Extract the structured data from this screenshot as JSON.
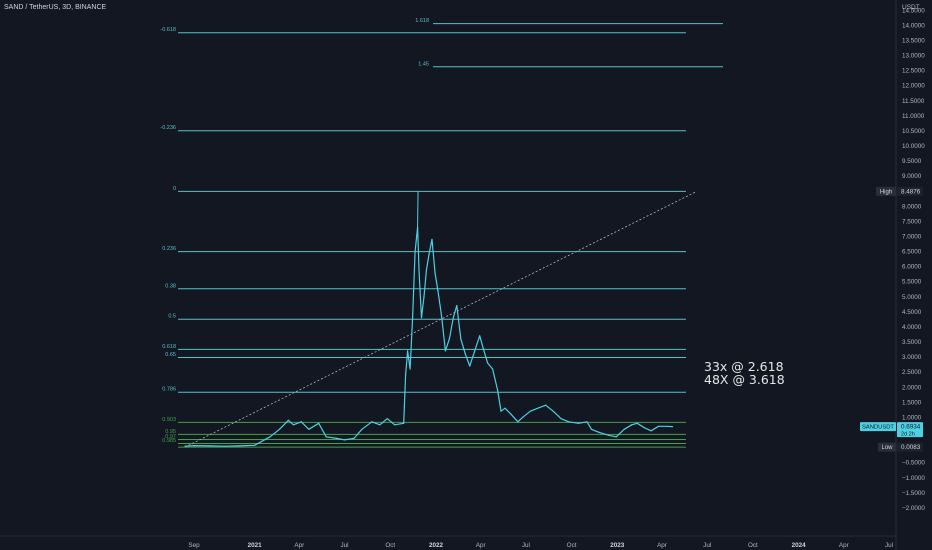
{
  "header": {
    "symbol": "SAND / TetherUS, 3D, BINANCE",
    "currency": "USDT"
  },
  "annotations": {
    "line1": "33x @ 2.618",
    "line2": "48X @ 3.618"
  },
  "colors": {
    "background": "#131722",
    "price": "#4dd0e1",
    "fib": "#56c1c9",
    "fib_green": "#43a047",
    "axis_text": "#b2b5be",
    "grid": "#1c2030"
  },
  "chart_data": {
    "type": "line",
    "title": "",
    "xlabel": "",
    "ylabel": "",
    "ylim": [
      -2.5,
      15
    ],
    "grid": false,
    "y_ticks": [
      {
        "value": 14.5,
        "label": "14.5000"
      },
      {
        "value": 14.0,
        "label": "14.0000"
      },
      {
        "value": 13.5,
        "label": "13.5000"
      },
      {
        "value": 13.0,
        "label": "13.0000"
      },
      {
        "value": 12.5,
        "label": "12.5000"
      },
      {
        "value": 12.0,
        "label": "12.0000"
      },
      {
        "value": 11.5,
        "label": "11.5000"
      },
      {
        "value": 11.0,
        "label": "11.0000"
      },
      {
        "value": 10.5,
        "label": "10.5000"
      },
      {
        "value": 10.0,
        "label": "10.0000"
      },
      {
        "value": 9.5,
        "label": "9.5000"
      },
      {
        "value": 9.0,
        "label": "9.0000"
      },
      {
        "value": 8.0,
        "label": "8.0000"
      },
      {
        "value": 7.5,
        "label": "7.5000"
      },
      {
        "value": 7.0,
        "label": "7.0000"
      },
      {
        "value": 6.5,
        "label": "6.5000"
      },
      {
        "value": 6.0,
        "label": "6.0000"
      },
      {
        "value": 5.5,
        "label": "5.5000"
      },
      {
        "value": 5.0,
        "label": "5.0000"
      },
      {
        "value": 4.5,
        "label": "4.5000"
      },
      {
        "value": 4.0,
        "label": "4.0000"
      },
      {
        "value": 3.5,
        "label": "3.5000"
      },
      {
        "value": 3.0,
        "label": "3.0000"
      },
      {
        "value": 2.5,
        "label": "2.5000"
      },
      {
        "value": 2.0,
        "label": "2.0000"
      },
      {
        "value": 1.5,
        "label": "1.5000"
      },
      {
        "value": 1.0,
        "label": "1.0000"
      },
      {
        "value": 0.5,
        "label": "0.5000"
      },
      {
        "value": -0.5,
        "label": "−0.5000"
      },
      {
        "value": -1.0,
        "label": "−1.0000"
      },
      {
        "value": -1.5,
        "label": "−1.5000"
      },
      {
        "value": -2.0,
        "label": "−2.0000"
      }
    ],
    "x_ticks": [
      {
        "x": "2020-09-01",
        "label": "Sep",
        "bold": false
      },
      {
        "x": "2021-01-01",
        "label": "2021",
        "bold": true
      },
      {
        "x": "2021-04-01",
        "label": "Apr",
        "bold": false
      },
      {
        "x": "2021-07-01",
        "label": "Jul",
        "bold": false
      },
      {
        "x": "2021-10-01",
        "label": "Oct",
        "bold": false
      },
      {
        "x": "2022-01-01",
        "label": "2022",
        "bold": true
      },
      {
        "x": "2022-04-01",
        "label": "Apr",
        "bold": false
      },
      {
        "x": "2022-07-01",
        "label": "Jul",
        "bold": false
      },
      {
        "x": "2022-10-01",
        "label": "Oct",
        "bold": false
      },
      {
        "x": "2023-01-01",
        "label": "2023",
        "bold": true
      },
      {
        "x": "2023-04-01",
        "label": "Apr",
        "bold": false
      },
      {
        "x": "2023-07-01",
        "label": "Jul",
        "bold": false
      },
      {
        "x": "2023-10-01",
        "label": "Oct",
        "bold": false
      },
      {
        "x": "2024-01-01",
        "label": "2024",
        "bold": true
      },
      {
        "x": "2024-04-01",
        "label": "Apr",
        "bold": false
      },
      {
        "x": "2024-07-01",
        "label": "Jul",
        "bold": false
      }
    ],
    "xlim": [
      "2020-08-01",
      "2024-08-01"
    ],
    "series": [
      {
        "values": [
          {
            "x": "2020-08-14",
            "y": 0.04
          },
          {
            "x": "2020-09-01",
            "y": 0.06
          },
          {
            "x": "2020-10-01",
            "y": 0.05
          },
          {
            "x": "2020-11-01",
            "y": 0.04
          },
          {
            "x": "2020-12-01",
            "y": 0.05
          },
          {
            "x": "2021-01-01",
            "y": 0.07
          },
          {
            "x": "2021-02-01",
            "y": 0.35
          },
          {
            "x": "2021-02-20",
            "y": 0.6
          },
          {
            "x": "2021-03-10",
            "y": 0.9
          },
          {
            "x": "2021-03-20",
            "y": 0.75
          },
          {
            "x": "2021-04-05",
            "y": 0.85
          },
          {
            "x": "2021-04-20",
            "y": 0.6
          },
          {
            "x": "2021-05-10",
            "y": 0.8
          },
          {
            "x": "2021-05-25",
            "y": 0.35
          },
          {
            "x": "2021-06-15",
            "y": 0.3
          },
          {
            "x": "2021-07-01",
            "y": 0.25
          },
          {
            "x": "2021-07-20",
            "y": 0.3
          },
          {
            "x": "2021-08-05",
            "y": 0.6
          },
          {
            "x": "2021-08-25",
            "y": 0.85
          },
          {
            "x": "2021-09-10",
            "y": 0.75
          },
          {
            "x": "2021-09-25",
            "y": 0.95
          },
          {
            "x": "2021-10-10",
            "y": 0.75
          },
          {
            "x": "2021-10-28",
            "y": 0.8
          },
          {
            "x": "2021-11-01",
            "y": 2.4
          },
          {
            "x": "2021-11-05",
            "y": 3.2
          },
          {
            "x": "2021-11-10",
            "y": 2.6
          },
          {
            "x": "2021-11-15",
            "y": 4.3
          },
          {
            "x": "2021-11-20",
            "y": 6.5
          },
          {
            "x": "2021-11-25",
            "y": 7.3
          },
          {
            "x": "2021-11-28",
            "y": 5.8
          },
          {
            "x": "2021-12-03",
            "y": 4.3
          },
          {
            "x": "2021-12-08",
            "y": 5.0
          },
          {
            "x": "2021-12-13",
            "y": 5.9
          },
          {
            "x": "2021-12-18",
            "y": 6.4
          },
          {
            "x": "2021-12-24",
            "y": 6.9
          },
          {
            "x": "2021-12-30",
            "y": 5.8
          },
          {
            "x": "2022-01-05",
            "y": 5.2
          },
          {
            "x": "2022-01-12",
            "y": 4.4
          },
          {
            "x": "2022-01-20",
            "y": 3.2
          },
          {
            "x": "2022-01-28",
            "y": 3.6
          },
          {
            "x": "2022-02-05",
            "y": 4.3
          },
          {
            "x": "2022-02-12",
            "y": 4.7
          },
          {
            "x": "2022-02-20",
            "y": 3.6
          },
          {
            "x": "2022-03-01",
            "y": 3.1
          },
          {
            "x": "2022-03-10",
            "y": 2.7
          },
          {
            "x": "2022-03-20",
            "y": 3.2
          },
          {
            "x": "2022-03-30",
            "y": 3.7
          },
          {
            "x": "2022-04-06",
            "y": 3.3
          },
          {
            "x": "2022-04-15",
            "y": 2.8
          },
          {
            "x": "2022-04-25",
            "y": 2.6
          },
          {
            "x": "2022-05-05",
            "y": 1.9
          },
          {
            "x": "2022-05-12",
            "y": 1.2
          },
          {
            "x": "2022-05-20",
            "y": 1.3
          },
          {
            "x": "2022-06-01",
            "y": 1.1
          },
          {
            "x": "2022-06-15",
            "y": 0.85
          },
          {
            "x": "2022-06-25",
            "y": 1.0
          },
          {
            "x": "2022-07-10",
            "y": 1.2
          },
          {
            "x": "2022-07-25",
            "y": 1.3
          },
          {
            "x": "2022-08-10",
            "y": 1.4
          },
          {
            "x": "2022-08-25",
            "y": 1.2
          },
          {
            "x": "2022-09-10",
            "y": 0.95
          },
          {
            "x": "2022-09-25",
            "y": 0.85
          },
          {
            "x": "2022-10-15",
            "y": 0.8
          },
          {
            "x": "2022-11-01",
            "y": 0.85
          },
          {
            "x": "2022-11-10",
            "y": 0.6
          },
          {
            "x": "2022-11-25",
            "y": 0.5
          },
          {
            "x": "2022-12-15",
            "y": 0.4
          },
          {
            "x": "2022-12-30",
            "y": 0.35
          },
          {
            "x": "2023-01-15",
            "y": 0.6
          },
          {
            "x": "2023-01-30",
            "y": 0.75
          },
          {
            "x": "2023-02-10",
            "y": 0.8
          },
          {
            "x": "2023-02-25",
            "y": 0.65
          },
          {
            "x": "2023-03-10",
            "y": 0.55
          },
          {
            "x": "2023-03-25",
            "y": 0.7
          },
          {
            "x": "2023-04-10",
            "y": 0.7
          },
          {
            "x": "2023-04-22",
            "y": 0.69
          }
        ]
      }
    ],
    "fib_levels": [
      {
        "label": "1.618",
        "value": 14.05,
        "green": false
      },
      {
        "label": "-0.618",
        "value": 13.75,
        "green": false
      },
      {
        "label": "1.45",
        "value": 12.62,
        "green": false
      },
      {
        "label": "-0.236",
        "value": 10.5,
        "green": false
      },
      {
        "label": "0",
        "value": 8.49,
        "green": false
      },
      {
        "label": "0.236",
        "value": 6.49,
        "green": false
      },
      {
        "label": "0.38",
        "value": 5.26,
        "green": false
      },
      {
        "label": "0.5",
        "value": 4.25,
        "green": false
      },
      {
        "label": "0.618",
        "value": 3.25,
        "green": false
      },
      {
        "label": "0.65",
        "value": 2.98,
        "green": false
      },
      {
        "label": "0.786",
        "value": 1.83,
        "green": false
      },
      {
        "label": "0.903",
        "value": 0.83,
        "green": true
      },
      {
        "label": "0.95",
        "value": 0.43,
        "green": true
      },
      {
        "label": "0.97",
        "value": 0.26,
        "green": true
      },
      {
        "label": "0.985",
        "value": 0.13,
        "green": true
      },
      {
        "label": "",
        "value": 0.01,
        "green": true
      }
    ],
    "trend_line": {
      "from": {
        "x": "2020-08-14",
        "y": 0.01
      },
      "to": {
        "x": "2023-06-10",
        "y": 8.49
      }
    },
    "markers": {
      "high": {
        "label": "High",
        "value": "8.4876",
        "y": 8.49
      },
      "last": {
        "label": "SANDUSDT",
        "value": "0.6934",
        "countdown": "2d 2h",
        "y": 0.69
      },
      "low": {
        "label": "Low",
        "value": "0.0083",
        "y": 0.01
      }
    }
  }
}
